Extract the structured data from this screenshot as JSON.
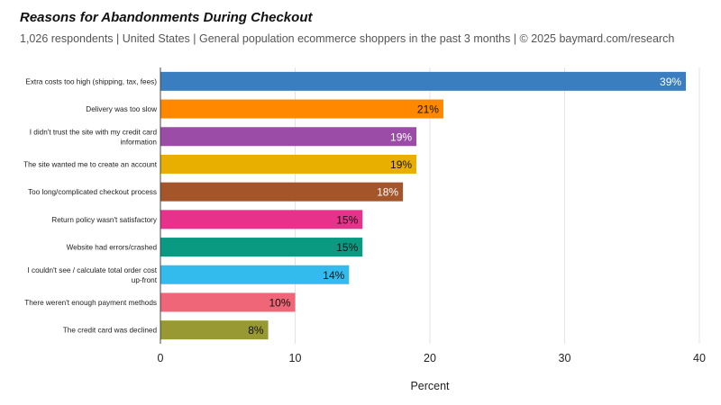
{
  "header": {
    "title": "Reasons for Abandonments During Checkout",
    "subtitle": "1,026 respondents  |  United States  |  General population ecommerce shoppers in the past 3 months | © 2025 baymard.com/research"
  },
  "chart_data": {
    "type": "bar",
    "orientation": "horizontal",
    "xlabel": "Percent",
    "ylabel": "",
    "xlim": [
      0,
      40
    ],
    "x_ticks": [
      0,
      10,
      20,
      30,
      40
    ],
    "grid": "vertical",
    "categories": [
      [
        "Extra costs too high (shipping, tax, fees)"
      ],
      [
        "Delivery was too slow"
      ],
      [
        "I didn't trust the site with my credit card",
        "information"
      ],
      [
        "The site wanted me to create an account"
      ],
      [
        "Too long/complicated checkout process"
      ],
      [
        "Return policy wasn't satisfactory"
      ],
      [
        "Website had errors/crashed"
      ],
      [
        "I couldn't see / calculate total order cost",
        "up-front"
      ],
      [
        "There weren't enough payment methods"
      ],
      [
        "The credit card was declined"
      ]
    ],
    "values": [
      39,
      21,
      19,
      19,
      18,
      15,
      15,
      14,
      10,
      8
    ],
    "data_labels": [
      "39%",
      "21%",
      "19%",
      "19%",
      "18%",
      "15%",
      "15%",
      "14%",
      "10%",
      "8%"
    ],
    "colors": [
      "#3a7ebf",
      "#ff8800",
      "#9a4ca6",
      "#e8af00",
      "#a5552a",
      "#e8318a",
      "#0a9a82",
      "#33bbee",
      "#ee6677",
      "#999933"
    ],
    "label_colors": [
      "#ffffff",
      "#111111",
      "#ffffff",
      "#111111",
      "#ffffff",
      "#111111",
      "#111111",
      "#111111",
      "#111111",
      "#111111"
    ]
  }
}
